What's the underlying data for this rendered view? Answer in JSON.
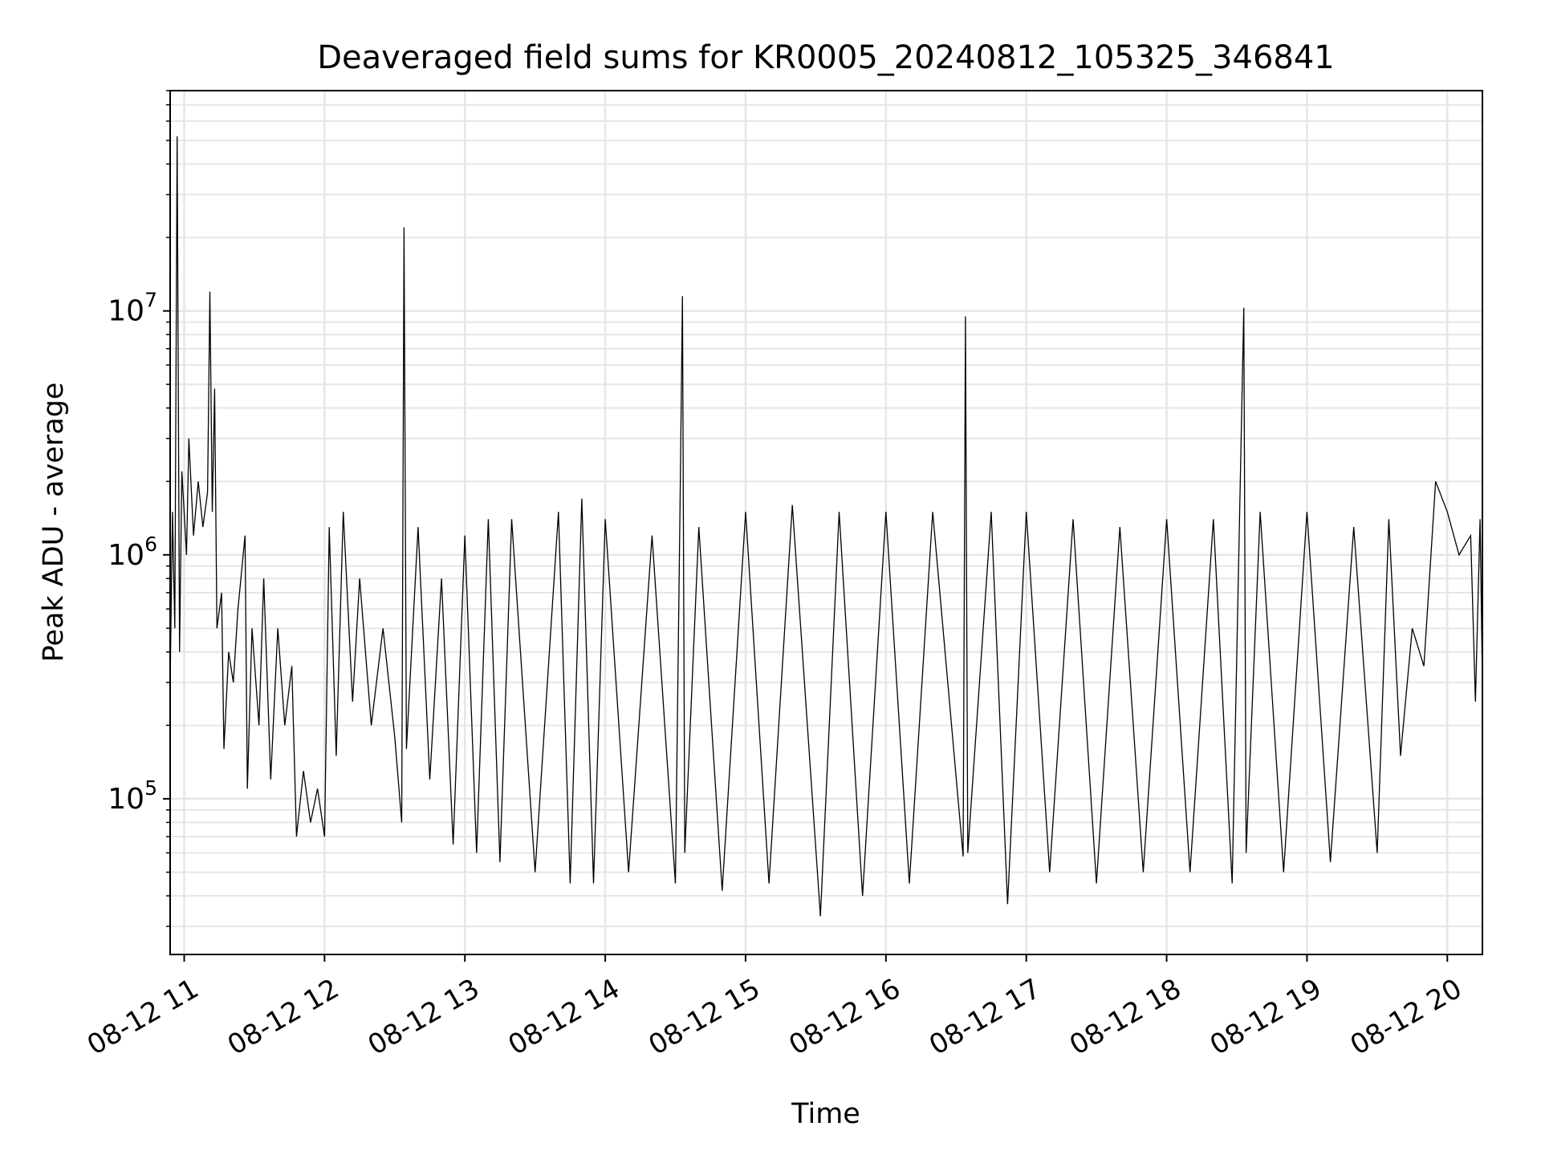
{
  "chart_data": {
    "type": "line",
    "title": "Deaveraged field sums for KR0005_20240812_105325_346841",
    "xlabel": "Time",
    "ylabel": "Peak ADU - average",
    "yscale": "log",
    "ylim": [
      23000,
      80000000
    ],
    "xlim": [
      "2024-08-12 10:54",
      "2024-08-12 20:15"
    ],
    "grid": true,
    "line_color": "#000000",
    "grid_color": "#e6e6e6",
    "x_ticks": [
      {
        "t": "2024-08-12 11:00",
        "label": "08-12 11"
      },
      {
        "t": "2024-08-12 12:00",
        "label": "08-12 12"
      },
      {
        "t": "2024-08-12 13:00",
        "label": "08-12 13"
      },
      {
        "t": "2024-08-12 14:00",
        "label": "08-12 14"
      },
      {
        "t": "2024-08-12 15:00",
        "label": "08-12 15"
      },
      {
        "t": "2024-08-12 16:00",
        "label": "08-12 16"
      },
      {
        "t": "2024-08-12 17:00",
        "label": "08-12 17"
      },
      {
        "t": "2024-08-12 18:00",
        "label": "08-12 18"
      },
      {
        "t": "2024-08-12 19:00",
        "label": "08-12 19"
      },
      {
        "t": "2024-08-12 20:00",
        "label": "08-12 20"
      }
    ],
    "y_ticks": [
      {
        "value": 100000,
        "base": "10",
        "exp": "5"
      },
      {
        "value": 1000000,
        "base": "10",
        "exp": "6"
      },
      {
        "value": 10000000,
        "base": "10",
        "exp": "7"
      }
    ],
    "series": [
      {
        "points": [
          [
            "2024-08-12 10:54",
            300000
          ],
          [
            "2024-08-12 10:55",
            1500000
          ],
          [
            "2024-08-12 10:56",
            500000
          ],
          [
            "2024-08-12 10:57",
            52000000
          ],
          [
            "2024-08-12 10:58",
            400000
          ],
          [
            "2024-08-12 10:59",
            2200000
          ],
          [
            "2024-08-12 11:01",
            1000000
          ],
          [
            "2024-08-12 11:02",
            3000000
          ],
          [
            "2024-08-12 11:04",
            1200000
          ],
          [
            "2024-08-12 11:06",
            2000000
          ],
          [
            "2024-08-12 11:08",
            1300000
          ],
          [
            "2024-08-12 11:10",
            1800000
          ],
          [
            "2024-08-12 11:11",
            12000000
          ],
          [
            "2024-08-12 11:12",
            1500000
          ],
          [
            "2024-08-12 11:13",
            4800000
          ],
          [
            "2024-08-12 11:14",
            500000
          ],
          [
            "2024-08-12 11:16",
            700000
          ],
          [
            "2024-08-12 11:17",
            160000
          ],
          [
            "2024-08-12 11:19",
            400000
          ],
          [
            "2024-08-12 11:21",
            300000
          ],
          [
            "2024-08-12 11:23",
            600000
          ],
          [
            "2024-08-12 11:26",
            1200000
          ],
          [
            "2024-08-12 11:27",
            110000
          ],
          [
            "2024-08-12 11:29",
            500000
          ],
          [
            "2024-08-12 11:32",
            200000
          ],
          [
            "2024-08-12 11:34",
            800000
          ],
          [
            "2024-08-12 11:37",
            120000
          ],
          [
            "2024-08-12 11:40",
            500000
          ],
          [
            "2024-08-12 11:43",
            200000
          ],
          [
            "2024-08-12 11:46",
            350000
          ],
          [
            "2024-08-12 11:48",
            70000
          ],
          [
            "2024-08-12 11:51",
            130000
          ],
          [
            "2024-08-12 11:54",
            80000
          ],
          [
            "2024-08-12 11:57",
            110000
          ],
          [
            "2024-08-12 12:00",
            70000
          ],
          [
            "2024-08-12 12:02",
            1300000
          ],
          [
            "2024-08-12 12:05",
            150000
          ],
          [
            "2024-08-12 12:08",
            1500000
          ],
          [
            "2024-08-12 12:12",
            250000
          ],
          [
            "2024-08-12 12:15",
            800000
          ],
          [
            "2024-08-12 12:20",
            200000
          ],
          [
            "2024-08-12 12:25",
            500000
          ],
          [
            "2024-08-12 12:30",
            180000
          ],
          [
            "2024-08-12 12:33",
            80000
          ],
          [
            "2024-08-12 12:34",
            22000000
          ],
          [
            "2024-08-12 12:35",
            160000
          ],
          [
            "2024-08-12 12:40",
            1300000
          ],
          [
            "2024-08-12 12:45",
            120000
          ],
          [
            "2024-08-12 12:50",
            800000
          ],
          [
            "2024-08-12 12:55",
            65000
          ],
          [
            "2024-08-12 13:00",
            1200000
          ],
          [
            "2024-08-12 13:05",
            60000
          ],
          [
            "2024-08-12 13:10",
            1400000
          ],
          [
            "2024-08-12 13:15",
            55000
          ],
          [
            "2024-08-12 13:20",
            1400000
          ],
          [
            "2024-08-12 13:30",
            50000
          ],
          [
            "2024-08-12 13:40",
            1500000
          ],
          [
            "2024-08-12 13:45",
            45000
          ],
          [
            "2024-08-12 13:50",
            1700000
          ],
          [
            "2024-08-12 13:55",
            45000
          ],
          [
            "2024-08-12 14:00",
            1400000
          ],
          [
            "2024-08-12 14:10",
            50000
          ],
          [
            "2024-08-12 14:20",
            1200000
          ],
          [
            "2024-08-12 14:30",
            45000
          ],
          [
            "2024-08-12 14:32",
            1600000
          ],
          [
            "2024-08-12 14:33",
            11500000
          ],
          [
            "2024-08-12 14:34",
            60000
          ],
          [
            "2024-08-12 14:40",
            1300000
          ],
          [
            "2024-08-12 14:50",
            42000
          ],
          [
            "2024-08-12 15:00",
            1500000
          ],
          [
            "2024-08-12 15:10",
            45000
          ],
          [
            "2024-08-12 15:20",
            1600000
          ],
          [
            "2024-08-12 15:32",
            33000
          ],
          [
            "2024-08-12 15:40",
            1500000
          ],
          [
            "2024-08-12 15:50",
            40000
          ],
          [
            "2024-08-12 16:00",
            1500000
          ],
          [
            "2024-08-12 16:10",
            45000
          ],
          [
            "2024-08-12 16:20",
            1500000
          ],
          [
            "2024-08-12 16:33",
            58000
          ],
          [
            "2024-08-12 16:34",
            9500000
          ],
          [
            "2024-08-12 16:35",
            60000
          ],
          [
            "2024-08-12 16:45",
            1500000
          ],
          [
            "2024-08-12 16:52",
            37000
          ],
          [
            "2024-08-12 17:00",
            1500000
          ],
          [
            "2024-08-12 17:10",
            50000
          ],
          [
            "2024-08-12 17:20",
            1400000
          ],
          [
            "2024-08-12 17:30",
            45000
          ],
          [
            "2024-08-12 17:40",
            1300000
          ],
          [
            "2024-08-12 17:50",
            50000
          ],
          [
            "2024-08-12 18:00",
            1400000
          ],
          [
            "2024-08-12 18:10",
            50000
          ],
          [
            "2024-08-12 18:20",
            1400000
          ],
          [
            "2024-08-12 18:28",
            45000
          ],
          [
            "2024-08-12 18:33",
            10300000
          ],
          [
            "2024-08-12 18:34",
            60000
          ],
          [
            "2024-08-12 18:40",
            1500000
          ],
          [
            "2024-08-12 18:50",
            50000
          ],
          [
            "2024-08-12 19:00",
            1500000
          ],
          [
            "2024-08-12 19:10",
            55000
          ],
          [
            "2024-08-12 19:20",
            1300000
          ],
          [
            "2024-08-12 19:30",
            60000
          ],
          [
            "2024-08-12 19:35",
            1400000
          ],
          [
            "2024-08-12 19:40",
            150000
          ],
          [
            "2024-08-12 19:45",
            500000
          ],
          [
            "2024-08-12 19:50",
            350000
          ],
          [
            "2024-08-12 19:55",
            2000000
          ],
          [
            "2024-08-12 20:00",
            1500000
          ],
          [
            "2024-08-12 20:05",
            1000000
          ],
          [
            "2024-08-12 20:10",
            1200000
          ],
          [
            "2024-08-12 20:12",
            250000
          ],
          [
            "2024-08-12 20:14",
            1400000
          ],
          [
            "2024-08-12 20:15",
            300000
          ]
        ]
      }
    ]
  }
}
